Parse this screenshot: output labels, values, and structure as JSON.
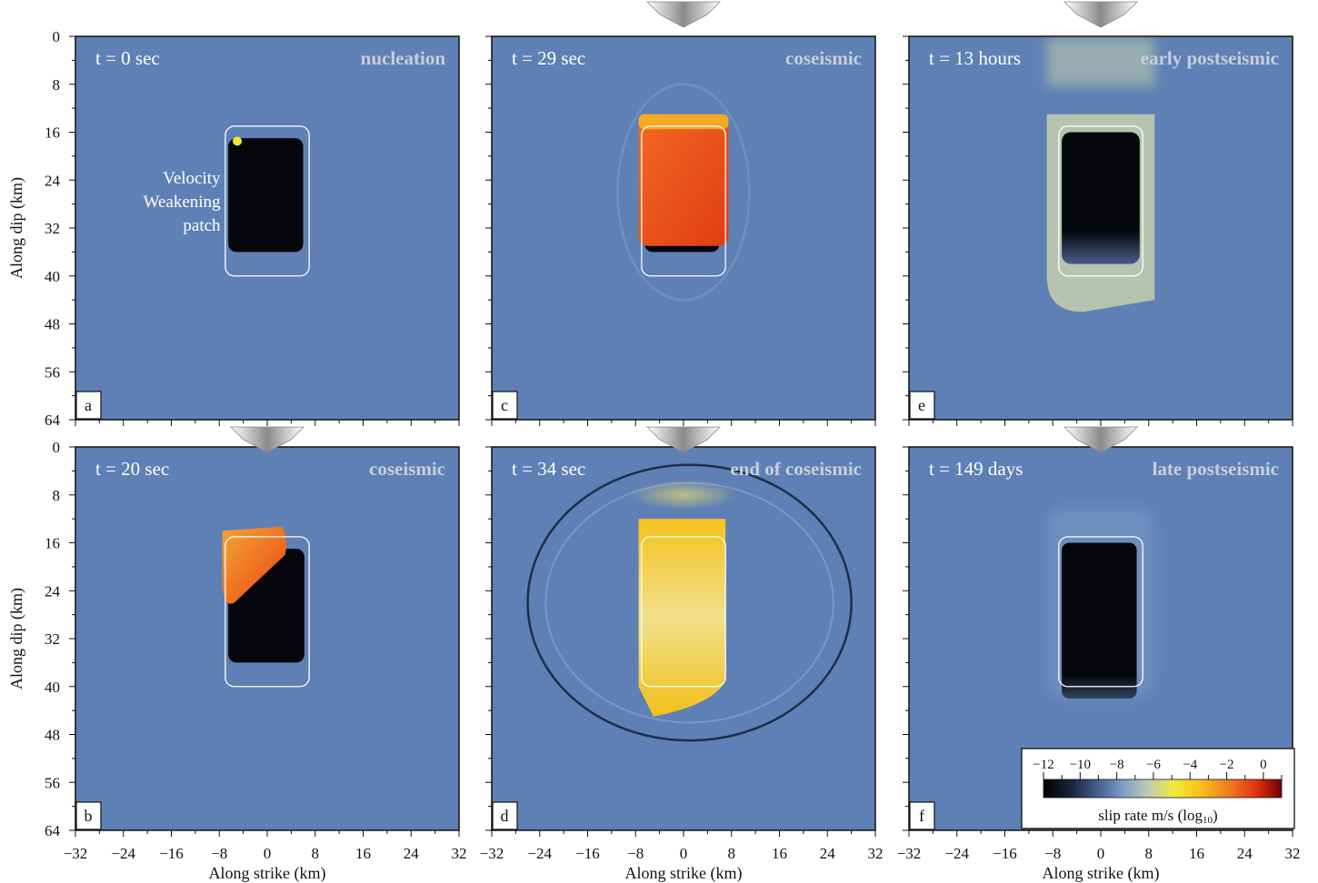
{
  "figure": {
    "y_axis_label": "Along dip (km)",
    "x_axis_label": "Along strike (km)",
    "y_ticks": [
      "0",
      "8",
      "16",
      "24",
      "32",
      "40",
      "48",
      "56",
      "64"
    ],
    "x_ticks": [
      "−32",
      "−24",
      "−16",
      "−8",
      "0",
      "8",
      "16",
      "24",
      "32"
    ],
    "annotation": [
      "Velocity",
      "Weakening",
      "patch"
    ]
  },
  "panels": [
    {
      "letter": "a",
      "time": "t = 0 sec",
      "phase": "nucleation",
      "state": "nucleation"
    },
    {
      "letter": "b",
      "time": "t = 20 sec",
      "phase": "coseismic",
      "state": "rupture20"
    },
    {
      "letter": "c",
      "time": "t = 29 sec",
      "phase": "coseismic",
      "state": "rupture29"
    },
    {
      "letter": "d",
      "time": "t = 34 sec",
      "phase": "end of coseismic",
      "state": "end"
    },
    {
      "letter": "e",
      "time": "t = 13 hours",
      "phase": "early postseismic",
      "state": "early"
    },
    {
      "letter": "f",
      "time": "t = 149 days",
      "phase": "late postseismic",
      "state": "late"
    }
  ],
  "colorbar": {
    "label_main": "slip rate m/s (log",
    "label_sub": "10",
    "label_end": ")",
    "ticks": [
      "−12",
      "−10",
      "−8",
      "−6",
      "−4",
      "−2",
      "0"
    ],
    "range": [
      -12,
      1
    ],
    "colors": [
      "#000000",
      "#1a2540",
      "#4e6b9e",
      "#7d9bc9",
      "#c4cfae",
      "#f2ea3a",
      "#f7c51a",
      "#ef7b21",
      "#e02e10",
      "#6b0000"
    ]
  },
  "colors": {
    "background_field": "#5e80b4",
    "locked_patch": "#05070c",
    "patch_outline": "#ffffff"
  }
}
